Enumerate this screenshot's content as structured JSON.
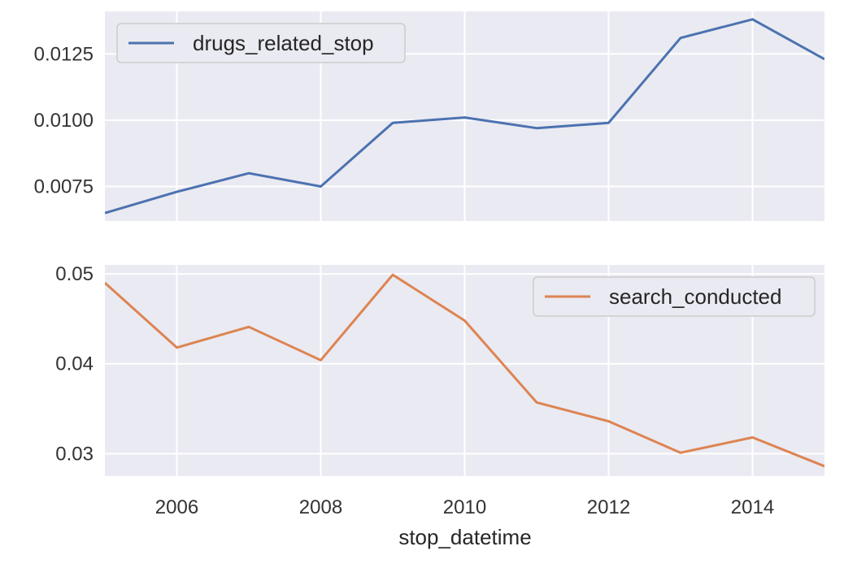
{
  "chart_data": [
    {
      "type": "line",
      "title": "",
      "xlabel": "",
      "ylabel": "",
      "x": [
        2005,
        2006,
        2007,
        2008,
        2009,
        2010,
        2011,
        2012,
        2013,
        2014,
        2015
      ],
      "series": [
        {
          "name": "drugs_related_stop",
          "color": "#4c72b0",
          "values": [
            0.0065,
            0.0073,
            0.008,
            0.0075,
            0.0099,
            0.0101,
            0.0097,
            0.0099,
            0.0131,
            0.0138,
            0.0123
          ]
        }
      ],
      "xlim": [
        2005,
        2015
      ],
      "ylim": [
        0.0062,
        0.0141
      ],
      "yticks": [
        0.0075,
        0.01,
        0.0125
      ],
      "ytick_labels": [
        "0.0075",
        "0.0100",
        "0.0125"
      ],
      "grid": true,
      "legend_position": "top-left"
    },
    {
      "type": "line",
      "title": "",
      "xlabel": "stop_datetime",
      "ylabel": "",
      "x": [
        2005,
        2006,
        2007,
        2008,
        2009,
        2010,
        2011,
        2012,
        2013,
        2014,
        2015
      ],
      "series": [
        {
          "name": "search_conducted",
          "color": "#dd8452",
          "values": [
            0.049,
            0.0418,
            0.0441,
            0.0404,
            0.0499,
            0.0448,
            0.0357,
            0.0336,
            0.0301,
            0.0318,
            0.0286
          ]
        }
      ],
      "xlim": [
        2005,
        2015
      ],
      "ylim": [
        0.0275,
        0.051
      ],
      "xticks": [
        2006,
        2008,
        2010,
        2012,
        2014
      ],
      "xtick_labels": [
        "2006",
        "2008",
        "2010",
        "2012",
        "2014"
      ],
      "yticks": [
        0.03,
        0.04,
        0.05
      ],
      "ytick_labels": [
        "0.03",
        "0.04",
        "0.05"
      ],
      "grid": true,
      "legend_position": "top-right"
    }
  ],
  "style": {
    "panel_background": "#eaeaf2",
    "grid_color": "#ffffff"
  }
}
